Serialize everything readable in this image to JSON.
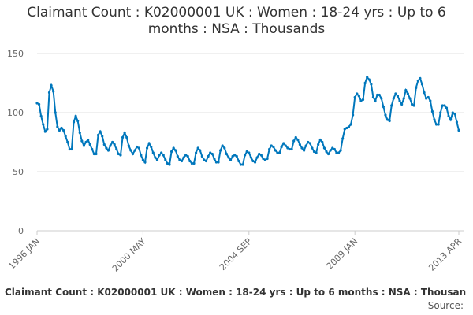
{
  "chart_data": {
    "type": "line",
    "title": "Claimant Count : K02000001 UK : Women : 18-24 yrs : Up to 6 months : NSA : Thousands",
    "footer": "Claimant Count : K02000001 UK : Women : 18-24 yrs : Up to 6 months : NSA : Thousan",
    "source": "Source:",
    "color": "#0077bc",
    "ylim": [
      0,
      150
    ],
    "yticks": [
      0,
      50,
      100,
      150
    ],
    "grid": true,
    "categories": [
      "1996 JAN",
      null,
      null,
      null,
      null,
      null,
      null,
      null,
      null,
      null,
      null,
      null,
      null,
      null,
      null,
      null,
      null,
      null,
      null,
      null,
      null,
      null,
      null,
      null,
      null,
      null,
      null,
      null,
      null,
      null,
      null,
      null,
      null,
      null,
      null,
      null,
      null,
      null,
      null,
      null,
      null,
      null,
      null,
      null,
      null,
      null,
      null,
      null,
      null,
      null,
      null,
      null,
      "2000 MAY",
      null,
      null,
      null,
      null,
      null,
      null,
      null,
      null,
      null,
      null,
      null,
      null,
      null,
      null,
      null,
      null,
      null,
      null,
      null,
      null,
      null,
      null,
      null,
      null,
      null,
      null,
      null,
      null,
      null,
      null,
      null,
      null,
      null,
      null,
      null,
      null,
      null,
      null,
      null,
      null,
      null,
      null,
      null,
      null,
      null,
      null,
      null,
      null,
      null,
      null,
      null,
      "2004 SEP",
      null,
      null,
      null,
      null,
      null,
      null,
      null,
      null,
      null,
      null,
      null,
      null,
      null,
      null,
      null,
      null,
      null,
      null,
      null,
      null,
      null,
      null,
      null,
      null,
      null,
      null,
      null,
      null,
      null,
      null,
      null,
      null,
      null,
      null,
      null,
      null,
      null,
      null,
      null,
      null,
      null,
      null,
      null,
      null,
      null,
      null,
      null,
      null,
      null,
      null,
      null,
      "2009 JAN",
      null,
      null,
      null,
      null,
      null,
      null,
      null,
      null,
      null,
      null,
      null,
      null,
      null,
      null,
      null,
      null,
      null,
      null,
      null,
      null,
      null,
      null,
      null,
      null,
      null,
      null,
      null,
      null,
      null,
      null,
      null,
      null,
      null,
      null,
      null,
      null,
      null,
      null,
      null,
      null,
      null,
      null,
      null,
      null,
      null,
      null,
      null,
      null,
      null,
      null,
      "2013 APR"
    ],
    "values": [
      108,
      107,
      97,
      90,
      84,
      86,
      117,
      123,
      118,
      100,
      88,
      85,
      87,
      85,
      80,
      75,
      69,
      69,
      92,
      97,
      93,
      83,
      76,
      72,
      75,
      77,
      73,
      69,
      65,
      65,
      81,
      84,
      80,
      73,
      70,
      68,
      72,
      75,
      73,
      69,
      65,
      64,
      79,
      83,
      79,
      72,
      68,
      65,
      68,
      71,
      70,
      64,
      60,
      58,
      70,
      74,
      71,
      66,
      62,
      60,
      64,
      66,
      64,
      60,
      57,
      56,
      67,
      70,
      68,
      63,
      60,
      59,
      62,
      64,
      63,
      59,
      57,
      57,
      66,
      70,
      68,
      63,
      60,
      59,
      63,
      66,
      65,
      61,
      58,
      58,
      68,
      72,
      70,
      65,
      62,
      60,
      63,
      64,
      63,
      59,
      56,
      56,
      64,
      67,
      66,
      62,
      59,
      58,
      62,
      65,
      64,
      61,
      60,
      61,
      69,
      72,
      71,
      68,
      66,
      66,
      71,
      74,
      72,
      70,
      69,
      69,
      76,
      79,
      77,
      73,
      70,
      68,
      72,
      75,
      74,
      70,
      67,
      66,
      73,
      77,
      75,
      70,
      67,
      65,
      68,
      70,
      69,
      66,
      66,
      68,
      78,
      86,
      87,
      88,
      90,
      98,
      113,
      116,
      114,
      110,
      111,
      125,
      130,
      128,
      124,
      113,
      110,
      115,
      115,
      112,
      105,
      98,
      94,
      93,
      106,
      112,
      116,
      114,
      110,
      107,
      112,
      119,
      116,
      112,
      107,
      106,
      121,
      127,
      129,
      124,
      117,
      112,
      113,
      110,
      101,
      94,
      90,
      90,
      100,
      106,
      106,
      104,
      97,
      94,
      100,
      99,
      92,
      85
    ]
  }
}
